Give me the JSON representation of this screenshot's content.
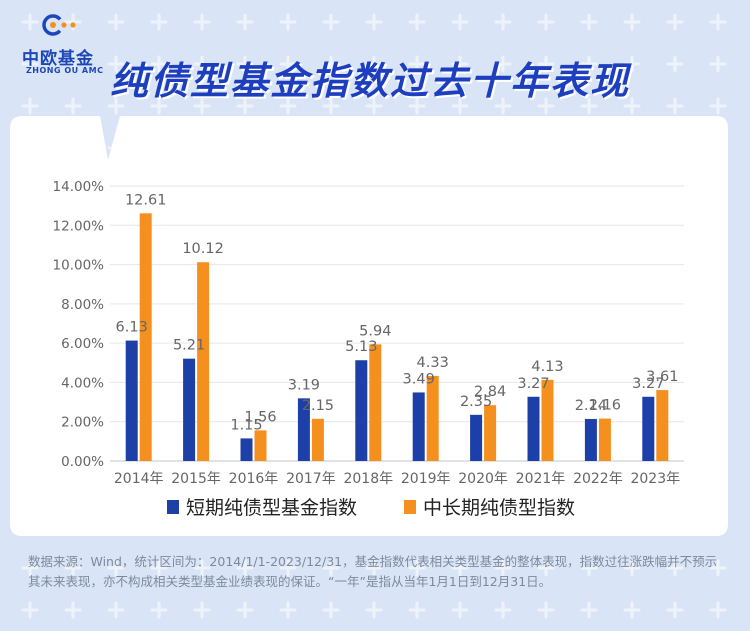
{
  "brand": {
    "name_cn": "中欧基金",
    "name_en": "ZHONG OU AMC"
  },
  "title": "纯债型基金指数过去十年表现",
  "chart_data": {
    "type": "bar",
    "title": "纯债型基金指数过去十年表现",
    "categories": [
      "2014年",
      "2015年",
      "2016年",
      "2017年",
      "2018年",
      "2019年",
      "2020年",
      "2021年",
      "2022年",
      "2023年"
    ],
    "series": [
      {
        "name": "短期纯债型基金指数",
        "color": "#1c3fa8",
        "values": [
          6.13,
          5.21,
          1.15,
          3.19,
          5.13,
          3.49,
          2.35,
          3.27,
          2.14,
          3.27
        ]
      },
      {
        "name": "中长期纯债型指数",
        "color": "#f5901f",
        "values": [
          12.61,
          10.12,
          1.56,
          2.15,
          5.94,
          4.33,
          2.84,
          4.13,
          2.16,
          3.61
        ]
      }
    ],
    "ylim": [
      0,
      14
    ],
    "yticks": [
      "0.00%",
      "2.00%",
      "4.00%",
      "6.00%",
      "8.00%",
      "10.00%",
      "12.00%",
      "14.00%"
    ],
    "ytick_values": [
      0,
      2,
      4,
      6,
      8,
      10,
      12,
      14
    ],
    "grid": true,
    "legend": "bottom"
  },
  "footnote": "数据来源：Wind，统计区间为：2014/1/1-2023/12/31，基金指数代表相关类型基金的整体表现，指数过往涨跌幅并不预示其未来表现，亦不构成相关类型基金业绩表现的保证。“一年”是指从当年1月1日到12月31日。"
}
